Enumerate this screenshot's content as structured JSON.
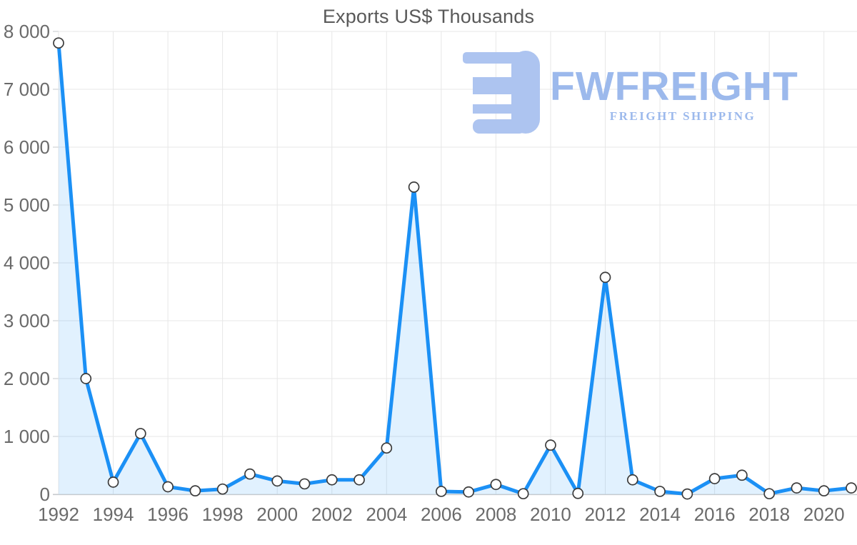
{
  "page": {
    "background": "#ffffff"
  },
  "chart_data": {
    "type": "area",
    "title": "Exports US$ Thousands",
    "series": [
      {
        "name": "Exports US$ Thousands",
        "x": [
          1992,
          1993,
          1994,
          1995,
          1996,
          1997,
          1998,
          1999,
          2000,
          2001,
          2002,
          2003,
          2004,
          2005,
          2006,
          2007,
          2008,
          2009,
          2010,
          2011,
          2012,
          2013,
          2014,
          2015,
          2016,
          2017,
          2018,
          2019,
          2020,
          2021
        ],
        "values": [
          7800,
          2000,
          210,
          1050,
          130,
          60,
          90,
          350,
          230,
          180,
          250,
          250,
          800,
          5310,
          50,
          40,
          170,
          10,
          850,
          15,
          3750,
          250,
          50,
          5,
          270,
          330,
          10,
          110,
          60,
          110
        ]
      }
    ],
    "xlabel": "",
    "ylabel": "",
    "xlim": [
      1992,
      2021
    ],
    "ylim": [
      0,
      8000
    ],
    "y_ticks": [
      0,
      1000,
      2000,
      3000,
      4000,
      5000,
      6000,
      7000,
      8000
    ],
    "y_tick_labels": [
      "0",
      "1 000",
      "2 000",
      "3 000",
      "4 000",
      "5 000",
      "6 000",
      "7 000",
      "8 000"
    ],
    "x_tick_years": [
      1992,
      1994,
      1996,
      1998,
      2000,
      2002,
      2004,
      2006,
      2008,
      2010,
      2012,
      2014,
      2016,
      2018,
      2020
    ],
    "grid": true,
    "legend_position": "none",
    "marker": "circle",
    "colors": {
      "line": "#1b90f5",
      "area_fill": "rgba(27,144,245,0.13)",
      "marker_fill": "#ffffff",
      "marker_stroke": "#3c3c3c",
      "gridline": "#e7e7e7",
      "axis_line": "#c6cacd",
      "tick_text": "#6a6a6a",
      "title_text": "#595959"
    }
  },
  "watermark": {
    "brand": "FWFREIGHT",
    "tagline": "FREIGHT SHIPPING",
    "icon_color": "#adc4f0",
    "text_color": "#9cb9ec"
  }
}
